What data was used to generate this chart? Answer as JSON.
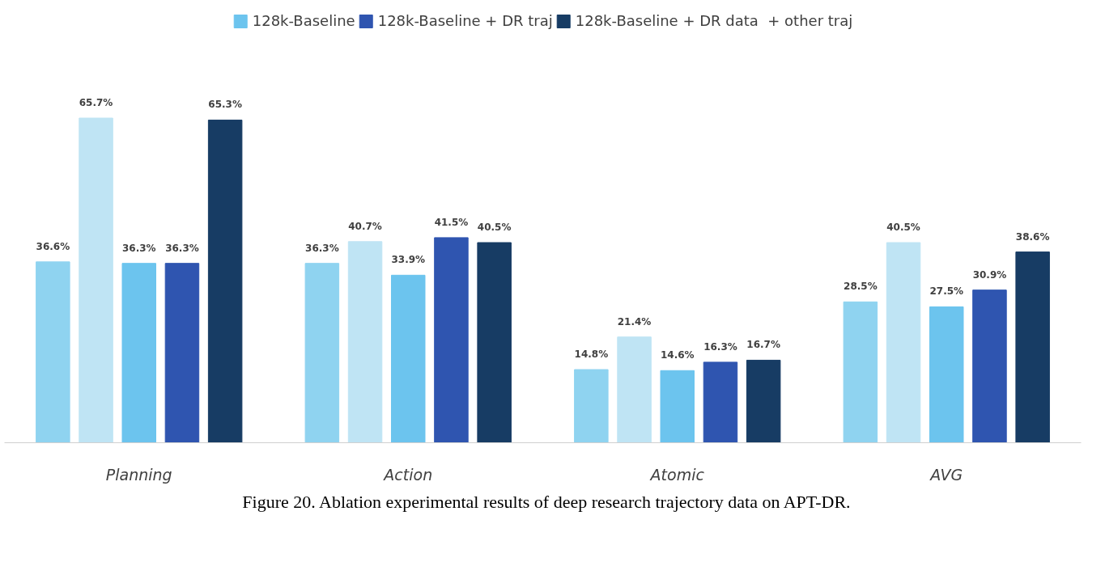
{
  "chart_data": {
    "type": "bar",
    "categories": [
      "Planning",
      "Action",
      "Atomic",
      "AVG"
    ],
    "series": [
      {
        "color": "#8fd3f0",
        "values": [
          36.6,
          36.3,
          14.8,
          28.5
        ],
        "value_labels": [
          "36.6%",
          "36.3%",
          "14.8%",
          "28.5%"
        ]
      },
      {
        "color": "#bfe4f4",
        "values": [
          65.7,
          40.7,
          21.4,
          40.5
        ],
        "value_labels": [
          "65.7%",
          "40.7%",
          "21.4%",
          "40.5%"
        ]
      },
      {
        "name": "128k-Baseline",
        "color": "#6cc4ee",
        "values": [
          36.3,
          33.9,
          14.6,
          27.5
        ],
        "value_labels": [
          "36.3%",
          "33.9%",
          "14.6%",
          "27.5%"
        ]
      },
      {
        "name": "128k-Baseline + DR traj",
        "color": "#2f55b0",
        "values": [
          36.3,
          41.5,
          16.3,
          30.9
        ],
        "value_labels": [
          "36.3%",
          "41.5%",
          "16.3%",
          "30.9%"
        ]
      },
      {
        "name": "128k-Baseline + DR data  + other traj",
        "color": "#173c64",
        "values": [
          65.3,
          40.5,
          16.7,
          38.6
        ],
        "value_labels": [
          "65.3%",
          "40.5%",
          "16.7%",
          "38.6%"
        ]
      }
    ],
    "legend": "top",
    "grid": false,
    "annotations": [
      "Figure 20. Ablation experimental results of deep research trajectory data on APT-DR."
    ]
  }
}
